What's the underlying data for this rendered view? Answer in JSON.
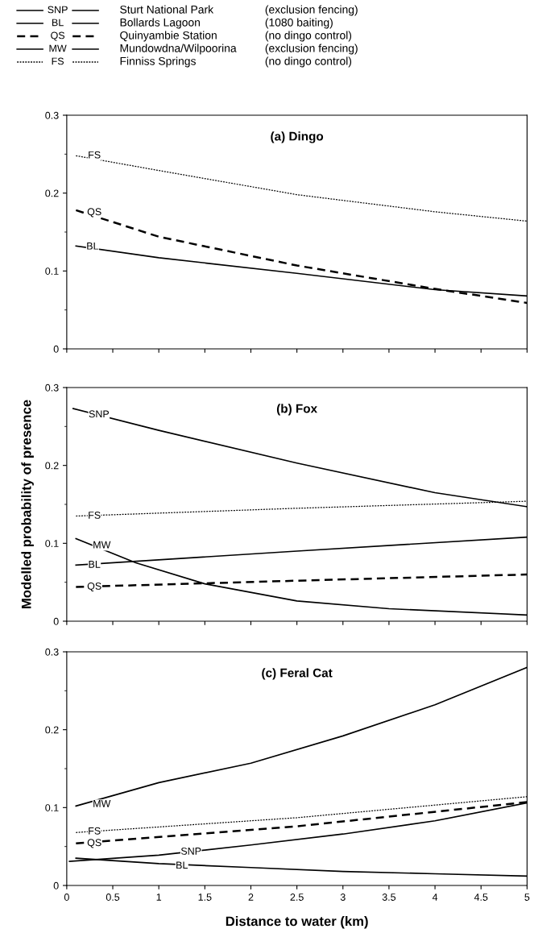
{
  "chart_data": [
    {
      "type": "other",
      "series": [
        {
          "name": "SNP",
          "line_style": "solid",
          "color": "#000000"
        },
        {
          "name": "BL",
          "line_style": "solid",
          "color": "#000000"
        },
        {
          "name": "QS",
          "line_style": "dashed",
          "color": "#000000"
        },
        {
          "name": "MW",
          "line_style": "solid",
          "color": "#000000"
        },
        {
          "name": "FS",
          "line_style": "dotted",
          "color": "#000000"
        }
      ],
      "annotations": [
        "Sturt National Park",
        "(exclusion fencing)",
        "Bollards Lagoon",
        "(1080 baiting)",
        "Quinyambie Station",
        "(no dingo control)",
        "Mundowdna/Wilpoorina",
        "(exclusion fencing)",
        "Finniss Springs",
        "(no dingo control)"
      ]
    },
    {
      "type": "line",
      "title": "(a) Dingo",
      "xlim": [
        0,
        5
      ],
      "ylim": [
        0,
        0.3
      ],
      "yticks": [
        0,
        0.1,
        0.2,
        0.3
      ],
      "tick_labels": "y",
      "series": [
        {
          "color": "#000000",
          "line_style": "dotted",
          "x": [
            0.1,
            1,
            2.5,
            4,
            5
          ],
          "values": [
            0.248,
            0.229,
            0.198,
            0.176,
            0.164
          ]
        },
        {
          "color": "#000000",
          "line_style": "dashed",
          "x": [
            0.1,
            1,
            2.5,
            4,
            5
          ],
          "values": [
            0.178,
            0.144,
            0.107,
            0.077,
            0.059
          ]
        },
        {
          "color": "#000000",
          "line_style": "solid",
          "x": [
            0.1,
            1,
            2.5,
            4,
            5
          ],
          "values": [
            0.132,
            0.117,
            0.097,
            0.076,
            0.068
          ]
        }
      ],
      "annotations": [
        {
          "text": "FS",
          "x": 0.3,
          "y": 0.248
        },
        {
          "text": "QS",
          "x": 0.3,
          "y": 0.175
        },
        {
          "text": "BL",
          "x": 0.28,
          "y": 0.131
        }
      ]
    },
    {
      "type": "line",
      "title": "(b) Fox",
      "ylabel": "Modelled probability of presence",
      "xlim": [
        0,
        5
      ],
      "ylim": [
        0,
        0.3
      ],
      "yticks": [
        0,
        0.1,
        0.2,
        0.3
      ],
      "tick_labels": "y",
      "series": [
        {
          "color": "#000000",
          "line_style": "solid",
          "x": [
            0.07,
            1,
            2.5,
            4,
            5
          ],
          "values": [
            0.273,
            0.245,
            0.203,
            0.165,
            0.147
          ]
        },
        {
          "color": "#000000",
          "line_style": "dotted",
          "x": [
            0.1,
            2.5,
            5
          ],
          "values": [
            0.135,
            0.145,
            0.154
          ]
        },
        {
          "color": "#000000",
          "line_style": "solid",
          "x": [
            0.1,
            0.75,
            1.5,
            2.5,
            3.5,
            5
          ],
          "values": [
            0.106,
            0.075,
            0.048,
            0.026,
            0.016,
            0.008
          ]
        },
        {
          "color": "#000000",
          "line_style": "solid",
          "x": [
            0.1,
            2.5,
            5
          ],
          "values": [
            0.072,
            0.09,
            0.108
          ]
        },
        {
          "color": "#000000",
          "line_style": "dashed",
          "x": [
            0.1,
            2.5,
            5
          ],
          "values": [
            0.044,
            0.052,
            0.06
          ]
        }
      ],
      "annotations": [
        {
          "text": "SNP",
          "x": 0.35,
          "y": 0.265
        },
        {
          "text": "FS",
          "x": 0.3,
          "y": 0.135
        },
        {
          "text": "MW",
          "x": 0.38,
          "y": 0.097
        },
        {
          "text": "BL",
          "x": 0.3,
          "y": 0.072
        },
        {
          "text": "QS",
          "x": 0.3,
          "y": 0.044
        }
      ]
    },
    {
      "type": "line",
      "title": "(c) Feral Cat",
      "xlabel": "Distance to water (km)",
      "xlim": [
        0,
        5
      ],
      "ylim": [
        0,
        0.3
      ],
      "xticks": [
        0,
        0.5,
        1,
        1.5,
        2,
        2.5,
        3,
        3.5,
        4,
        4.5,
        5
      ],
      "yticks": [
        0,
        0.1,
        0.2,
        0.3
      ],
      "series": [
        {
          "color": "#000000",
          "line_style": "solid",
          "x": [
            0.1,
            1,
            2,
            3,
            4,
            5
          ],
          "values": [
            0.102,
            0.132,
            0.157,
            0.192,
            0.232,
            0.28
          ]
        },
        {
          "color": "#000000",
          "line_style": "dotted",
          "x": [
            0.1,
            2.5,
            5
          ],
          "values": [
            0.068,
            0.087,
            0.114
          ]
        },
        {
          "color": "#000000",
          "line_style": "dashed",
          "x": [
            0.1,
            2.5,
            5
          ],
          "values": [
            0.054,
            0.076,
            0.107
          ]
        },
        {
          "color": "#000000",
          "line_style": "solid",
          "x": [
            0.03,
            1,
            2,
            3,
            4,
            5
          ],
          "values": [
            0.031,
            0.039,
            0.052,
            0.066,
            0.083,
            0.106
          ]
        },
        {
          "color": "#000000",
          "line_style": "solid",
          "x": [
            0.1,
            1,
            2,
            3,
            4,
            5
          ],
          "values": [
            0.035,
            0.028,
            0.023,
            0.018,
            0.015,
            0.012
          ]
        }
      ],
      "annotations": [
        {
          "text": "MW",
          "x": 0.38,
          "y": 0.104
        },
        {
          "text": "FS",
          "x": 0.3,
          "y": 0.069
        },
        {
          "text": "QS",
          "x": 0.3,
          "y": 0.054
        },
        {
          "text": "SNP",
          "x": 1.35,
          "y": 0.043
        },
        {
          "text": "BL",
          "x": 1.25,
          "y": 0.025
        }
      ]
    }
  ]
}
